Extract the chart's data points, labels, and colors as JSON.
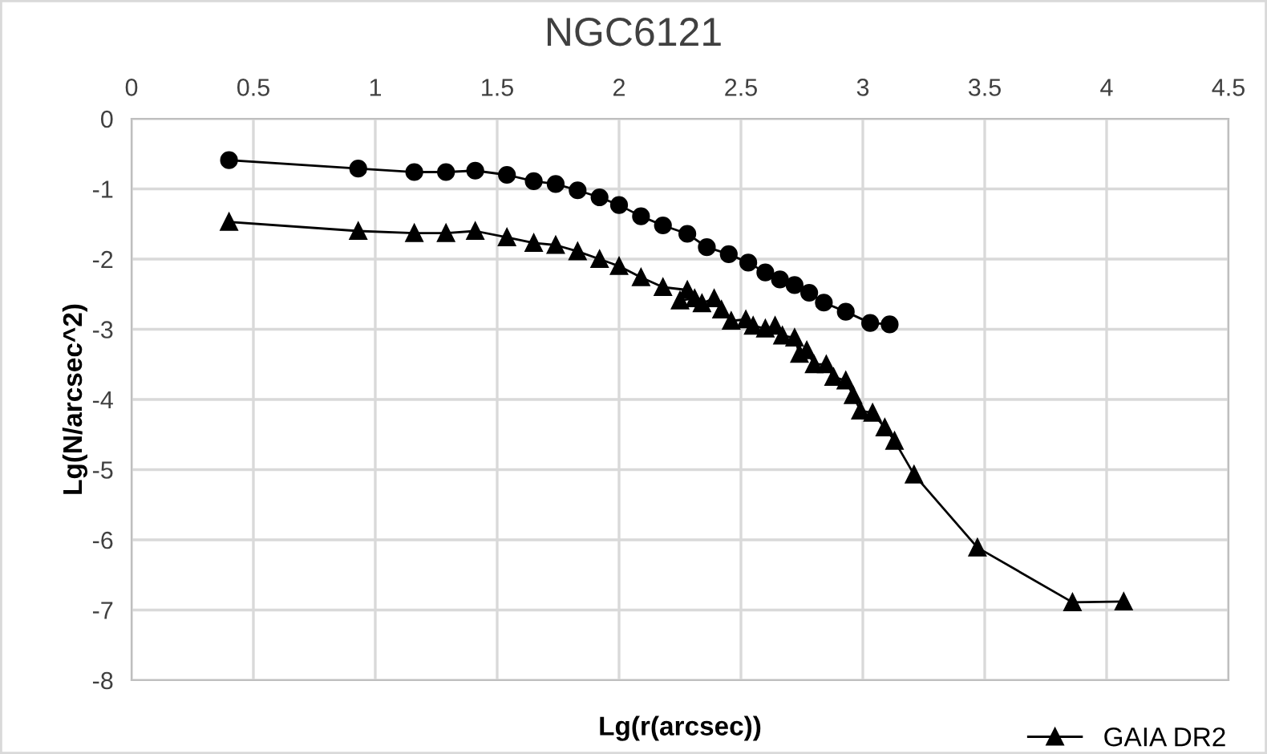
{
  "chart_data": {
    "type": "line",
    "title": "NGC6121",
    "xlabel": "Lg(r(arcsec))",
    "ylabel": "Lg(N/arcsec^2)",
    "xlim": [
      0,
      4.5
    ],
    "xticks": [
      0,
      0.5,
      1,
      1.5,
      2,
      2.5,
      3,
      3.5,
      4,
      4.5
    ],
    "ylim": [
      -8,
      0
    ],
    "yticks": [
      -8,
      -7,
      -6,
      -5,
      -4,
      -3,
      -2,
      -1,
      0
    ],
    "grid": true,
    "legend": "bottom right",
    "series": [
      {
        "color": "#000000",
        "marker": "circle",
        "x": [
          0.4,
          0.93,
          1.16,
          1.29,
          1.41,
          1.54,
          1.65,
          1.74,
          1.83,
          1.92,
          2.0,
          2.09,
          2.18,
          2.28,
          2.36,
          2.45,
          2.53,
          2.6,
          2.66,
          2.72,
          2.78,
          2.84,
          2.93,
          3.03,
          3.11
        ],
        "values": [
          -0.59,
          -0.71,
          -0.76,
          -0.76,
          -0.74,
          -0.8,
          -0.89,
          -0.93,
          -1.02,
          -1.12,
          -1.23,
          -1.39,
          -1.52,
          -1.64,
          -1.83,
          -1.93,
          -2.05,
          -2.19,
          -2.29,
          -2.37,
          -2.48,
          -2.62,
          -2.75,
          -2.91,
          -2.93
        ]
      },
      {
        "name": "GAIA DR2",
        "color": "#000000",
        "marker": "triangle",
        "x": [
          0.4,
          0.93,
          1.16,
          1.29,
          1.41,
          1.54,
          1.65,
          1.74,
          1.83,
          1.92,
          2.0,
          2.09,
          2.18,
          2.28,
          2.25,
          2.31,
          2.34,
          2.39,
          2.42,
          2.46,
          2.52,
          2.55,
          2.6,
          2.64,
          2.67,
          2.72,
          2.74,
          2.77,
          2.8,
          2.85,
          2.88,
          2.93,
          2.96,
          2.99,
          3.04,
          3.09,
          3.13,
          3.21,
          3.47,
          3.86,
          4.07
        ],
        "values": [
          -1.47,
          -1.6,
          -1.63,
          -1.63,
          -1.6,
          -1.69,
          -1.77,
          -1.8,
          -1.89,
          -2.0,
          -2.1,
          -2.26,
          -2.4,
          -2.44,
          -2.59,
          -2.56,
          -2.63,
          -2.56,
          -2.72,
          -2.88,
          -2.86,
          -2.95,
          -2.99,
          -2.95,
          -3.09,
          -3.12,
          -3.35,
          -3.3,
          -3.5,
          -3.5,
          -3.68,
          -3.73,
          -3.94,
          -4.16,
          -4.19,
          -4.4,
          -4.59,
          -5.07,
          -6.11,
          -6.89,
          -6.88
        ]
      }
    ]
  }
}
